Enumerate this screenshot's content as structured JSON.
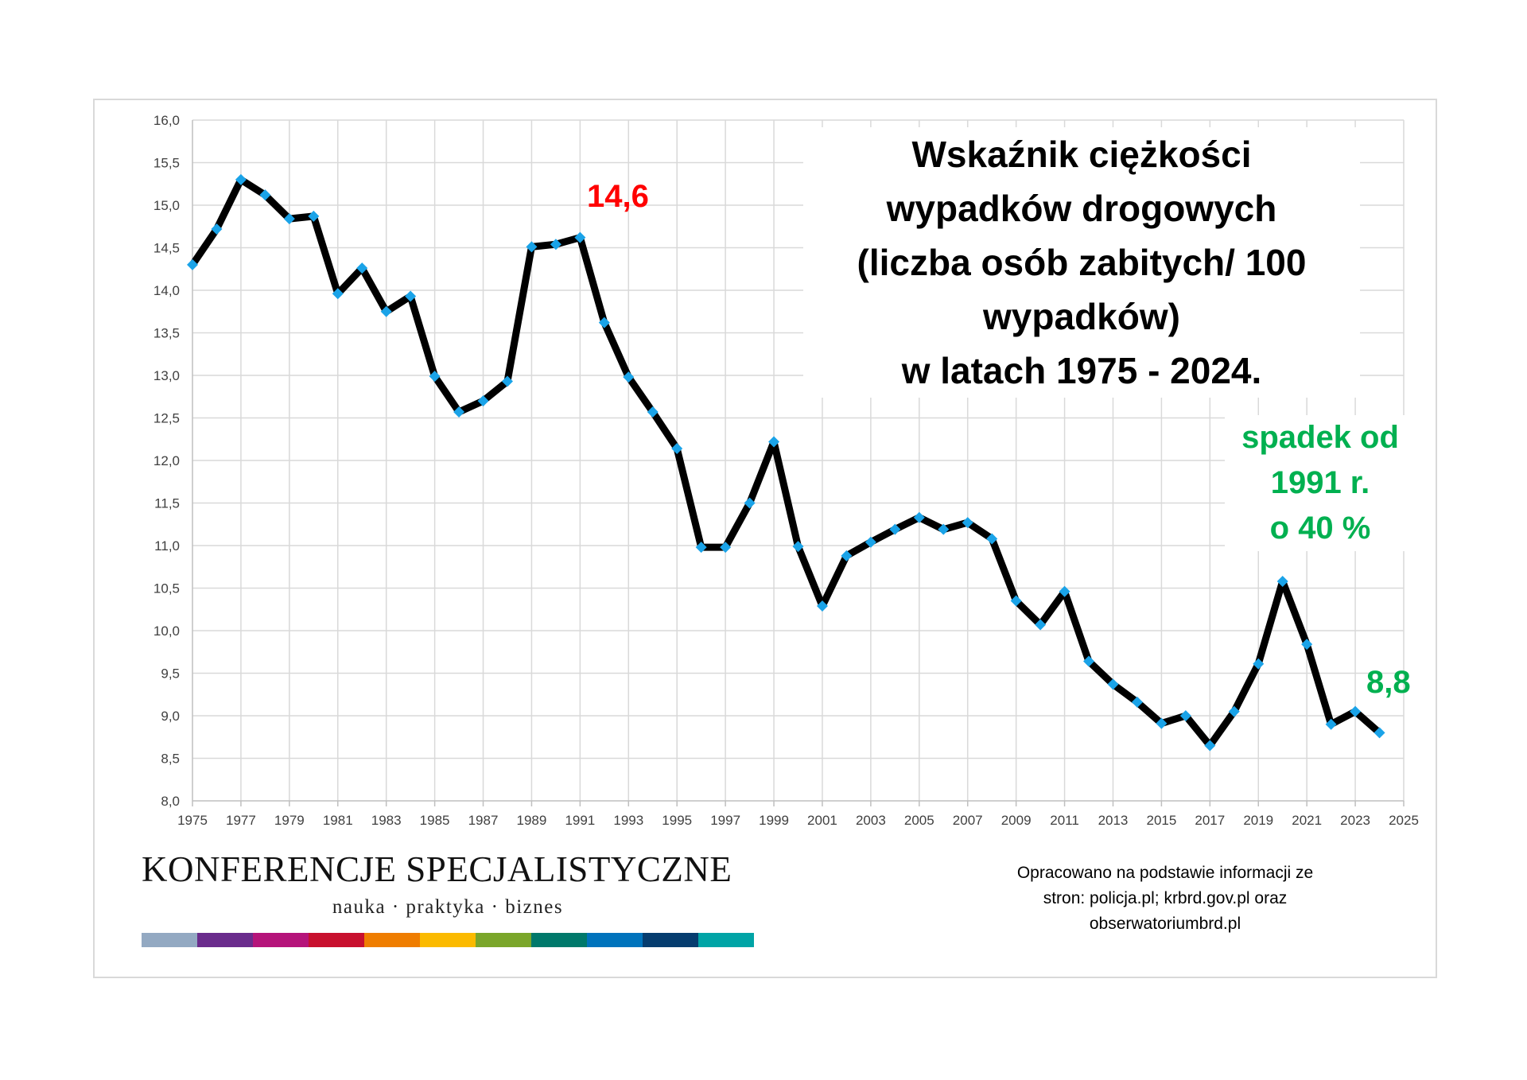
{
  "chart_data": {
    "type": "line",
    "title": [
      "Wskaźnik ciężkości",
      "wypadków drogowych",
      "(liczba osób zabitych/ 100",
      "wypadków)",
      "w latach 1975 - 2024."
    ],
    "xlim": [
      1975,
      2025
    ],
    "ylim": [
      8.0,
      16.0
    ],
    "x_ticks": [
      "1975",
      "1977",
      "1979",
      "1981",
      "1983",
      "1985",
      "1987",
      "1989",
      "1991",
      "1993",
      "1995",
      "1997",
      "1999",
      "2001",
      "2003",
      "2005",
      "2007",
      "2009",
      "2011",
      "2013",
      "2015",
      "2017",
      "2019",
      "2021",
      "2023",
      "2025"
    ],
    "y_ticks": [
      "16,0",
      "15,5",
      "15,0",
      "14,5",
      "14,0",
      "13,5",
      "13,0",
      "12,5",
      "12,0",
      "11,5",
      "11,0",
      "10,5",
      "10,0",
      "9,5",
      "9,0",
      "8,5",
      "8,0"
    ],
    "grid": true,
    "legend": "none",
    "series": [
      {
        "line_color": "#000000",
        "marker_color": "#1aa3e8",
        "marker": "diamond",
        "x": [
          1975,
          1976,
          1977,
          1978,
          1979,
          1980,
          1981,
          1982,
          1983,
          1984,
          1985,
          1986,
          1987,
          1988,
          1989,
          1990,
          1991,
          1992,
          1993,
          1994,
          1995,
          1996,
          1997,
          1998,
          1999,
          2000,
          2001,
          2002,
          2003,
          2004,
          2005,
          2006,
          2007,
          2008,
          2009,
          2010,
          2011,
          2012,
          2013,
          2014,
          2015,
          2016,
          2017,
          2018,
          2019,
          2020,
          2021,
          2022,
          2023,
          2024
        ],
        "y": [
          14.3,
          14.72,
          15.3,
          15.12,
          14.84,
          14.87,
          13.96,
          14.26,
          13.75,
          13.93,
          12.99,
          12.57,
          12.7,
          12.93,
          14.51,
          14.54,
          14.62,
          13.62,
          12.98,
          12.57,
          12.14,
          10.98,
          10.98,
          11.5,
          12.22,
          10.99,
          10.29,
          10.88,
          11.04,
          11.19,
          11.33,
          11.19,
          11.27,
          11.08,
          10.35,
          10.07,
          10.46,
          9.64,
          9.37,
          9.16,
          8.91,
          9.0,
          8.65,
          9.05,
          9.61,
          10.58,
          9.84,
          8.9,
          9.05,
          8.8
        ]
      }
    ],
    "annotations": [
      {
        "text": "14,6",
        "color": "#ff0000",
        "x": 1991,
        "y": 14.6
      },
      {
        "lines": [
          "spadek od",
          "1991 r.",
          "o 40 %"
        ],
        "color": "#00b050"
      },
      {
        "text": "8,8",
        "color": "#00b050",
        "x": 2024,
        "y": 8.8
      }
    ]
  },
  "branding": {
    "name": "KONFERENCJE SPECJALISTYCZNE",
    "tagline": "nauka · praktyka · biznes",
    "strip_colors": [
      "#93a9c2",
      "#6a2c8c",
      "#b5147a",
      "#c8102e",
      "#ef7d00",
      "#fbba00",
      "#7aa62a",
      "#00796b",
      "#0073bc",
      "#063d6f",
      "#00a4a6"
    ]
  },
  "source_note": [
    "Opracowano na podstawie informacji ze",
    "stron: policja.pl; krbrd.gov.pl oraz",
    "obserwatoriumbrd.pl"
  ],
  "colors": {
    "grid": "#d9d9d9",
    "axis": "#bfbfbf",
    "tick_text": "#404040",
    "line": "#000000",
    "marker": "#1aa3e8"
  }
}
